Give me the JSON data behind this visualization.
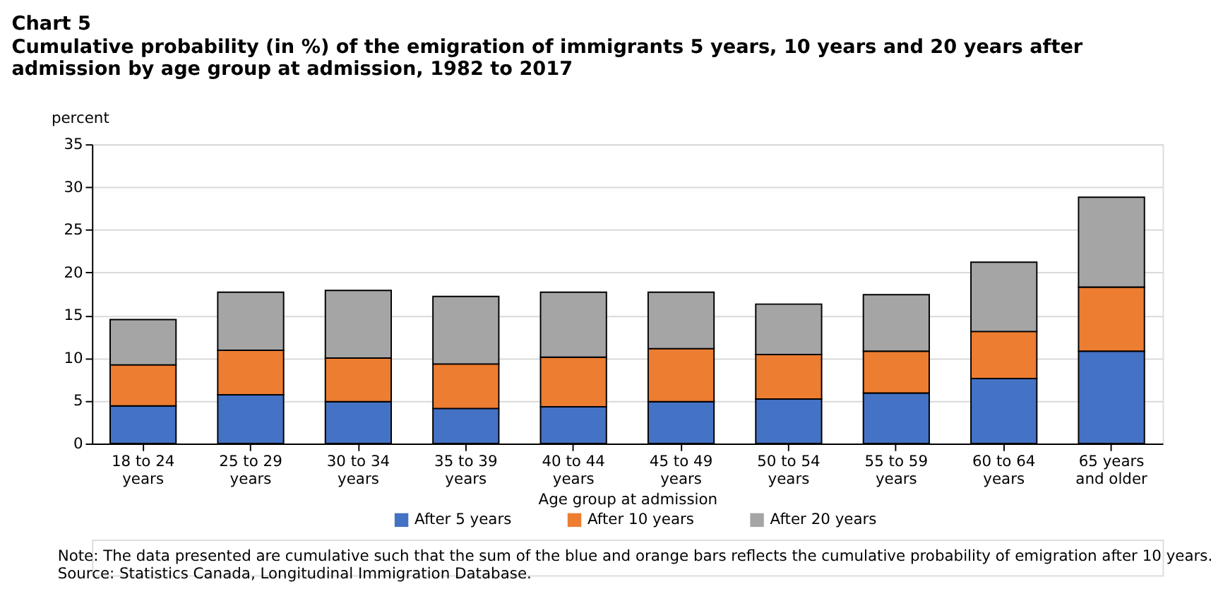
{
  "chart_data": {
    "type": "bar",
    "title": "Chart 5",
    "subtitle": "Cumulative probability (in %) of the emigration of immigrants 5 years, 10 years and 20 years after admission by age group at admission, 1982 to 2017",
    "ylabel": "percent",
    "xlabel": "Age group at admission",
    "categories": [
      "18 to 24 years",
      "25 to 29 years",
      "30 to 34 years",
      "35 to 39 years",
      "40 to 44 years",
      "45 to 49 years",
      "50 to 54 years",
      "55 to 59 years",
      "60 to 64 years",
      "65 years and older"
    ],
    "series": [
      {
        "name": "After 5 years",
        "color": "#4472c4",
        "values": [
          4.4,
          5.7,
          4.9,
          4.1,
          4.3,
          4.9,
          5.2,
          5.9,
          7.6,
          10.8
        ]
      },
      {
        "name": "After 10 years",
        "color": "#ed7d31",
        "values": [
          4.8,
          5.2,
          5.1,
          5.2,
          5.8,
          6.2,
          5.2,
          4.9,
          5.5,
          7.5
        ]
      },
      {
        "name": "After 20 years",
        "color": "#a5a5a5",
        "values": [
          5.3,
          6.8,
          7.9,
          7.9,
          7.6,
          6.6,
          5.9,
          6.6,
          8.1,
          10.5
        ]
      }
    ],
    "stacked": true,
    "ylim": [
      0,
      35
    ],
    "yticks": [
      0,
      5,
      10,
      15,
      20,
      25,
      30,
      35
    ],
    "grid": "y",
    "legend": "bottom",
    "annotations": [
      "Note: The data presented are cumulative such that the sum of the blue and orange bars reflects the cumulative probability of emigration after 10 years.",
      "Source: Statistics Canada, Longitudinal Immigration Database."
    ]
  }
}
